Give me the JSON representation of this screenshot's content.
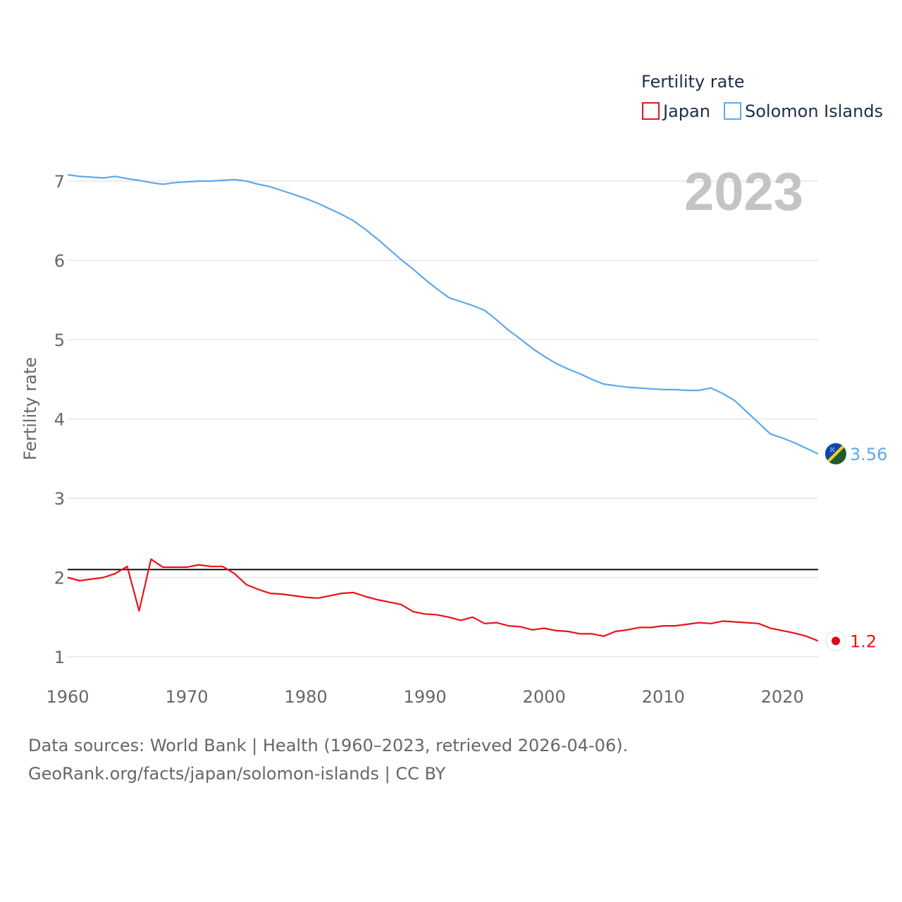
{
  "chart_data": {
    "type": "line",
    "title": "Fertility rate",
    "year_label": "2023",
    "xlabel": "",
    "ylabel": "Fertility rate",
    "xlim": [
      1960,
      2023
    ],
    "ylim": [
      0.55,
      7.3
    ],
    "x_ticks": [
      1960,
      1970,
      1980,
      1990,
      2000,
      2010,
      2020
    ],
    "y_ticks": [
      1,
      2,
      3,
      4,
      5,
      6,
      7
    ],
    "reference_line": 2.1,
    "legend_position": "top-right",
    "series": [
      {
        "name": "Japan",
        "color": "#e8131a",
        "end_label": "1.2",
        "flag_icon": "japan-flag-icon",
        "x": [
          1960,
          1961,
          1962,
          1963,
          1964,
          1965,
          1966,
          1967,
          1968,
          1969,
          1970,
          1971,
          1972,
          1973,
          1974,
          1975,
          1976,
          1977,
          1978,
          1979,
          1980,
          1981,
          1982,
          1983,
          1984,
          1985,
          1986,
          1987,
          1988,
          1989,
          1990,
          1991,
          1992,
          1993,
          1994,
          1995,
          1996,
          1997,
          1998,
          1999,
          2000,
          2001,
          2002,
          2003,
          2004,
          2005,
          2006,
          2007,
          2008,
          2009,
          2010,
          2011,
          2012,
          2013,
          2014,
          2015,
          2016,
          2017,
          2018,
          2019,
          2020,
          2021,
          2022,
          2023
        ],
        "values": [
          2.0,
          1.96,
          1.98,
          2.0,
          2.05,
          2.14,
          1.58,
          2.23,
          2.13,
          2.13,
          2.13,
          2.16,
          2.14,
          2.14,
          2.05,
          1.91,
          1.85,
          1.8,
          1.79,
          1.77,
          1.75,
          1.74,
          1.77,
          1.8,
          1.81,
          1.76,
          1.72,
          1.69,
          1.66,
          1.57,
          1.54,
          1.53,
          1.5,
          1.46,
          1.5,
          1.42,
          1.43,
          1.39,
          1.38,
          1.34,
          1.36,
          1.33,
          1.32,
          1.29,
          1.29,
          1.26,
          1.32,
          1.34,
          1.37,
          1.37,
          1.39,
          1.39,
          1.41,
          1.43,
          1.42,
          1.45,
          1.44,
          1.43,
          1.42,
          1.36,
          1.33,
          1.3,
          1.26,
          1.2
        ]
      },
      {
        "name": "Solomon Islands",
        "color": "#5ea9ea",
        "end_label": "3.56",
        "flag_icon": "solomon-islands-flag-icon",
        "x": [
          1960,
          1961,
          1962,
          1963,
          1964,
          1965,
          1966,
          1967,
          1968,
          1969,
          1970,
          1971,
          1972,
          1973,
          1974,
          1975,
          1976,
          1977,
          1978,
          1979,
          1980,
          1981,
          1982,
          1983,
          1984,
          1985,
          1986,
          1987,
          1988,
          1989,
          1990,
          1991,
          1992,
          1993,
          1994,
          1995,
          1996,
          1997,
          1998,
          1999,
          2000,
          2001,
          2002,
          2003,
          2004,
          2005,
          2006,
          2007,
          2008,
          2009,
          2010,
          2011,
          2012,
          2013,
          2014,
          2015,
          2016,
          2017,
          2018,
          2019,
          2020,
          2021,
          2022,
          2023
        ],
        "values": [
          7.08,
          7.06,
          7.05,
          7.04,
          7.06,
          7.03,
          7.01,
          6.98,
          6.96,
          6.98,
          6.99,
          7.0,
          7.0,
          7.01,
          7.02,
          7.0,
          6.96,
          6.93,
          6.88,
          6.83,
          6.78,
          6.72,
          6.65,
          6.58,
          6.5,
          6.39,
          6.27,
          6.14,
          6.01,
          5.89,
          5.76,
          5.64,
          5.53,
          5.48,
          5.43,
          5.37,
          5.25,
          5.12,
          5.01,
          4.89,
          4.79,
          4.7,
          4.63,
          4.57,
          4.5,
          4.44,
          4.42,
          4.4,
          4.39,
          4.38,
          4.37,
          4.37,
          4.36,
          4.36,
          4.39,
          4.32,
          4.23,
          4.09,
          3.95,
          3.81,
          3.76,
          3.7,
          3.63,
          3.56
        ]
      }
    ]
  },
  "source": {
    "line1": "Data sources: World Bank | Health (1960–2023, retrieved 2026-04-06).",
    "line2": "GeoRank.org/facts/japan/solomon-islands | CC BY"
  }
}
